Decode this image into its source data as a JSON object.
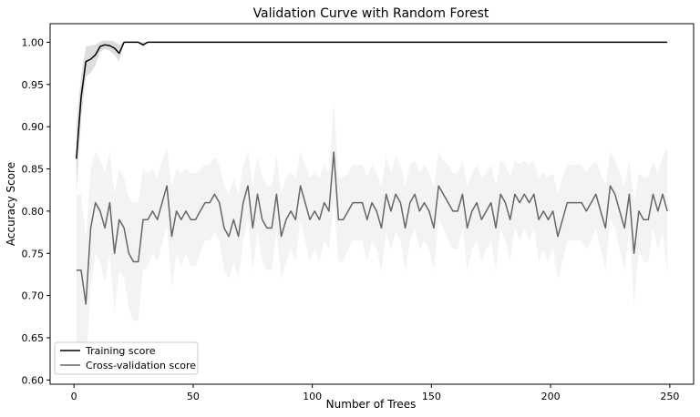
{
  "chart_data": {
    "type": "line",
    "title": "Validation Curve with Random Forest",
    "xlabel": "Number of Trees",
    "ylabel": "Accuracy Score",
    "xlim": [
      -10,
      260
    ],
    "ylim": [
      0.595,
      1.022
    ],
    "xticks": [
      0,
      50,
      100,
      150,
      200,
      250
    ],
    "yticks": [
      0.6,
      0.65,
      0.7,
      0.75,
      0.8,
      0.85,
      0.9,
      0.95,
      1.0
    ],
    "grid": false,
    "legend": "lower-left",
    "x_range": {
      "start": 1,
      "end": 249,
      "step": 2
    },
    "series": [
      {
        "name": "Training score",
        "color": "#000000",
        "band_color": "#d9d9d9",
        "values": [
          0.862,
          0.935,
          0.977,
          0.98,
          0.985,
          0.995,
          0.997,
          0.996,
          0.993,
          0.987,
          1.0,
          1.0,
          1.0,
          1.0,
          0.997,
          1.0,
          1.0,
          1.0,
          1.0,
          1.0,
          1.0,
          1.0,
          1.0,
          1.0,
          1.0,
          1.0,
          1.0,
          1.0,
          1.0,
          1.0,
          1.0,
          1.0,
          1.0,
          1.0,
          1.0,
          1.0,
          1.0,
          1.0,
          1.0,
          1.0,
          1.0,
          1.0,
          1.0,
          1.0,
          1.0,
          1.0,
          1.0,
          1.0,
          1.0,
          1.0,
          1.0,
          1.0,
          1.0,
          1.0,
          1.0,
          1.0,
          1.0,
          1.0,
          1.0,
          1.0,
          1.0,
          1.0,
          1.0,
          1.0,
          1.0,
          1.0,
          1.0,
          1.0,
          1.0,
          1.0,
          1.0,
          1.0,
          1.0,
          1.0,
          1.0,
          1.0,
          1.0,
          1.0,
          1.0,
          1.0,
          1.0,
          1.0,
          1.0,
          1.0,
          1.0,
          1.0,
          1.0,
          1.0,
          1.0,
          1.0,
          1.0,
          1.0,
          1.0,
          1.0,
          1.0,
          1.0,
          1.0,
          1.0,
          1.0,
          1.0,
          1.0,
          1.0,
          1.0,
          1.0,
          1.0,
          1.0,
          1.0,
          1.0,
          1.0,
          1.0,
          1.0,
          1.0,
          1.0,
          1.0,
          1.0,
          1.0,
          1.0,
          1.0,
          1.0,
          1.0,
          1.0,
          1.0,
          1.0,
          1.0,
          1.0
        ],
        "band_half_width": [
          0.04,
          0.025,
          0.018,
          0.016,
          0.012,
          0.006,
          0.005,
          0.006,
          0.008,
          0.01,
          0,
          0,
          0,
          0,
          0.003,
          0,
          0,
          0,
          0,
          0,
          0,
          0,
          0,
          0,
          0,
          0,
          0,
          0,
          0,
          0,
          0,
          0,
          0,
          0,
          0,
          0,
          0,
          0,
          0,
          0,
          0,
          0,
          0,
          0,
          0,
          0,
          0,
          0,
          0,
          0,
          0,
          0,
          0,
          0,
          0,
          0,
          0,
          0,
          0,
          0,
          0,
          0,
          0,
          0,
          0,
          0,
          0,
          0,
          0,
          0,
          0,
          0,
          0,
          0,
          0,
          0,
          0,
          0,
          0,
          0,
          0,
          0,
          0,
          0,
          0,
          0,
          0,
          0,
          0,
          0,
          0,
          0,
          0,
          0,
          0,
          0,
          0,
          0,
          0,
          0,
          0,
          0,
          0,
          0,
          0,
          0,
          0,
          0,
          0,
          0,
          0,
          0,
          0,
          0,
          0,
          0,
          0,
          0,
          0,
          0,
          0,
          0,
          0,
          0,
          0
        ]
      },
      {
        "name": "Cross-validation score",
        "color": "#666666",
        "band_color": "#eeeeee",
        "values": [
          0.73,
          0.73,
          0.69,
          0.78,
          0.81,
          0.8,
          0.78,
          0.81,
          0.75,
          0.79,
          0.78,
          0.75,
          0.74,
          0.74,
          0.79,
          0.79,
          0.8,
          0.79,
          0.81,
          0.83,
          0.77,
          0.8,
          0.79,
          0.8,
          0.79,
          0.79,
          0.8,
          0.81,
          0.81,
          0.82,
          0.81,
          0.78,
          0.77,
          0.79,
          0.77,
          0.81,
          0.83,
          0.78,
          0.82,
          0.79,
          0.78,
          0.78,
          0.82,
          0.77,
          0.79,
          0.8,
          0.79,
          0.83,
          0.81,
          0.79,
          0.8,
          0.79,
          0.81,
          0.8,
          0.87,
          0.79,
          0.79,
          0.8,
          0.81,
          0.81,
          0.81,
          0.79,
          0.81,
          0.8,
          0.78,
          0.82,
          0.8,
          0.82,
          0.81,
          0.78,
          0.81,
          0.82,
          0.8,
          0.81,
          0.8,
          0.78,
          0.83,
          0.82,
          0.81,
          0.8,
          0.8,
          0.82,
          0.78,
          0.8,
          0.81,
          0.79,
          0.8,
          0.81,
          0.78,
          0.82,
          0.81,
          0.79,
          0.82,
          0.81,
          0.82,
          0.81,
          0.82,
          0.79,
          0.8,
          0.79,
          0.8,
          0.77,
          0.79,
          0.81,
          0.81,
          0.81,
          0.81,
          0.8,
          0.81,
          0.82,
          0.8,
          0.78,
          0.83,
          0.82,
          0.8,
          0.78,
          0.82,
          0.75,
          0.8,
          0.79,
          0.79,
          0.82,
          0.8,
          0.82,
          0.8
        ],
        "band_half_width": [
          0.09,
          0.09,
          0.08,
          0.07,
          0.06,
          0.06,
          0.065,
          0.06,
          0.07,
          0.06,
          0.06,
          0.065,
          0.07,
          0.07,
          0.06,
          0.055,
          0.05,
          0.05,
          0.05,
          0.045,
          0.06,
          0.05,
          0.055,
          0.05,
          0.055,
          0.055,
          0.05,
          0.045,
          0.045,
          0.045,
          0.045,
          0.05,
          0.05,
          0.05,
          0.05,
          0.045,
          0.04,
          0.05,
          0.045,
          0.05,
          0.05,
          0.05,
          0.045,
          0.05,
          0.05,
          0.045,
          0.05,
          0.04,
          0.045,
          0.05,
          0.045,
          0.05,
          0.045,
          0.045,
          0.06,
          0.05,
          0.05,
          0.045,
          0.045,
          0.045,
          0.045,
          0.05,
          0.045,
          0.045,
          0.05,
          0.045,
          0.045,
          0.045,
          0.045,
          0.05,
          0.045,
          0.04,
          0.045,
          0.045,
          0.045,
          0.05,
          0.04,
          0.04,
          0.045,
          0.045,
          0.045,
          0.04,
          0.05,
          0.045,
          0.045,
          0.05,
          0.045,
          0.045,
          0.05,
          0.04,
          0.045,
          0.05,
          0.04,
          0.045,
          0.04,
          0.045,
          0.04,
          0.05,
          0.045,
          0.05,
          0.045,
          0.05,
          0.05,
          0.045,
          0.045,
          0.045,
          0.045,
          0.045,
          0.045,
          0.04,
          0.045,
          0.05,
          0.04,
          0.04,
          0.045,
          0.05,
          0.04,
          0.06,
          0.045,
          0.05,
          0.05,
          0.04,
          0.045,
          0.045,
          0.075
        ]
      }
    ]
  }
}
